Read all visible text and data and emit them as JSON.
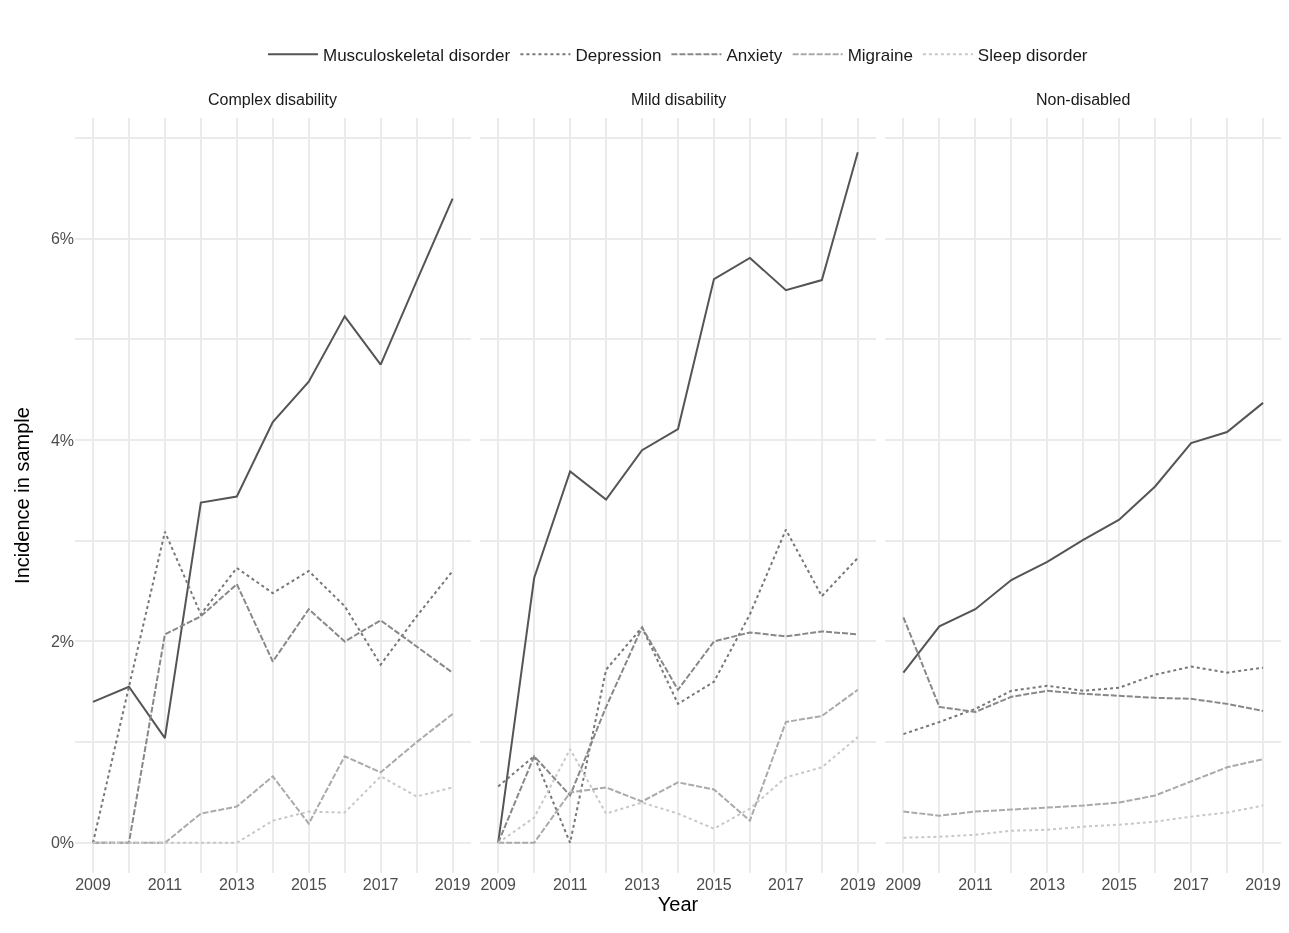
{
  "chart_data": [
    {
      "type": "line",
      "title": "Complex disability",
      "ylabel": "Incidence in sample",
      "legend": "top",
      "grid": true,
      "xlim": [
        2008.5,
        2019.5
      ],
      "ylim": [
        -0.3,
        7.2
      ],
      "xticks": [
        2009,
        {
          "value": 2010,
          "label": null
        },
        2011,
        {
          "value": 2012,
          "label": null
        },
        2013,
        {
          "value": 2014,
          "label": null
        },
        2015,
        {
          "value": 2016,
          "label": null
        },
        2017,
        {
          "value": 2018,
          "label": null
        },
        2019
      ],
      "yticks": [
        {
          "value": 0,
          "label": "0%"
        },
        {
          "value": 1,
          "label": null
        },
        {
          "value": 2,
          "label": "2%"
        },
        {
          "value": 3,
          "label": null
        },
        {
          "value": 4,
          "label": "4%"
        },
        {
          "value": 5,
          "label": null
        },
        {
          "value": 6,
          "label": "6%"
        },
        {
          "value": 7,
          "label": null
        }
      ],
      "x": [
        2009,
        2010,
        2011,
        2012,
        2013,
        2014,
        2015,
        2016,
        2017,
        2018,
        2019
      ],
      "series": [
        {
          "name": "Musculoskeletal disorder",
          "color": "#555555",
          "line_style": "solid",
          "values": [
            1.4,
            1.55,
            1.04,
            3.38,
            3.44,
            4.18,
            4.58,
            5.23,
            4.75,
            5.58,
            6.4
          ]
        },
        {
          "name": "Depression",
          "color": "#777777",
          "line_style": "dotted",
          "values": [
            0,
            1.55,
            3.09,
            2.27,
            2.73,
            2.48,
            2.7,
            2.35,
            1.77,
            2.25,
            2.7
          ]
        },
        {
          "name": "Anxiety",
          "color": "#888888",
          "line_style": "dashed",
          "values": [
            0,
            0,
            2.07,
            2.25,
            2.57,
            1.8,
            2.32,
            2.0,
            2.21,
            1.95,
            1.69
          ]
        },
        {
          "name": "Migraine",
          "color": "#aaaaaa",
          "line_style": "dashed",
          "values": [
            0,
            0,
            0,
            0.29,
            0.36,
            0.66,
            0.19,
            0.86,
            0.7,
            1.0,
            1.28
          ]
        },
        {
          "name": "Sleep disorder",
          "color": "#c8c8c8",
          "line_style": "dotted",
          "values": [
            0,
            0,
            0,
            0,
            0,
            0.22,
            0.31,
            0.3,
            0.66,
            0.46,
            0.55
          ]
        }
      ]
    },
    {
      "type": "line",
      "title": "Mild disability",
      "xlabel": "Year",
      "grid": true,
      "tick_labels": "x",
      "xlim": [
        2008.5,
        2019.5
      ],
      "ylim": [
        -0.3,
        7.2
      ],
      "xticks": [
        2009,
        {
          "value": 2010,
          "label": null
        },
        2011,
        {
          "value": 2012,
          "label": null
        },
        2013,
        {
          "value": 2014,
          "label": null
        },
        2015,
        {
          "value": 2016,
          "label": null
        },
        2017,
        {
          "value": 2018,
          "label": null
        },
        2019
      ],
      "yticks": [
        {
          "value": 0,
          "label": null
        },
        {
          "value": 1,
          "label": null
        },
        {
          "value": 2,
          "label": null
        },
        {
          "value": 3,
          "label": null
        },
        {
          "value": 4,
          "label": null
        },
        {
          "value": 5,
          "label": null
        },
        {
          "value": 6,
          "label": null
        },
        {
          "value": 7,
          "label": null
        }
      ],
      "x": [
        2009,
        2010,
        2011,
        2012,
        2013,
        2014,
        2015,
        2016,
        2017,
        2018,
        2019
      ],
      "series": [
        {
          "color": "#555555",
          "line_style": "solid",
          "values": [
            0,
            2.63,
            3.69,
            3.41,
            3.9,
            4.11,
            5.6,
            5.81,
            5.49,
            5.59,
            6.86
          ]
        },
        {
          "color": "#777777",
          "line_style": "dotted",
          "values": [
            0.56,
            0.86,
            0,
            1.72,
            2.14,
            1.38,
            1.6,
            2.27,
            3.11,
            2.45,
            2.83
          ]
        },
        {
          "color": "#888888",
          "line_style": "dashed",
          "values": [
            0,
            0.86,
            0.47,
            1.35,
            2.14,
            1.52,
            2.0,
            2.09,
            2.05,
            2.1,
            2.07
          ]
        },
        {
          "color": "#aaaaaa",
          "line_style": "dashed",
          "values": [
            0,
            0,
            0.5,
            0.55,
            0.41,
            0.6,
            0.53,
            0.22,
            1.2,
            1.26,
            1.52
          ]
        },
        {
          "color": "#c8c8c8",
          "line_style": "dotted",
          "values": [
            0,
            0.25,
            0.93,
            0.29,
            0.4,
            0.29,
            0.14,
            0.34,
            0.65,
            0.75,
            1.05
          ]
        }
      ]
    },
    {
      "type": "line",
      "title": "Non-disabled",
      "grid": true,
      "tick_labels": "x",
      "xlim": [
        2008.5,
        2019.5
      ],
      "ylim": [
        -0.3,
        7.2
      ],
      "xticks": [
        2009,
        {
          "value": 2010,
          "label": null
        },
        2011,
        {
          "value": 2012,
          "label": null
        },
        2013,
        {
          "value": 2014,
          "label": null
        },
        2015,
        {
          "value": 2016,
          "label": null
        },
        2017,
        {
          "value": 2018,
          "label": null
        },
        2019
      ],
      "yticks": [
        {
          "value": 0,
          "label": null
        },
        {
          "value": 1,
          "label": null
        },
        {
          "value": 2,
          "label": null
        },
        {
          "value": 3,
          "label": null
        },
        {
          "value": 4,
          "label": null
        },
        {
          "value": 5,
          "label": null
        },
        {
          "value": 6,
          "label": null
        },
        {
          "value": 7,
          "label": null
        }
      ],
      "x": [
        2009,
        2010,
        2011,
        2012,
        2013,
        2014,
        2015,
        2016,
        2017,
        2018,
        2019
      ],
      "series": [
        {
          "color": "#555555",
          "line_style": "solid",
          "values": [
            1.69,
            2.15,
            2.32,
            2.61,
            2.79,
            3.01,
            3.21,
            3.54,
            3.97,
            4.08,
            4.37
          ]
        },
        {
          "color": "#777777",
          "line_style": "dotted",
          "values": [
            1.08,
            1.2,
            1.33,
            1.51,
            1.56,
            1.51,
            1.54,
            1.67,
            1.75,
            1.69,
            1.74
          ]
        },
        {
          "color": "#888888",
          "line_style": "dashed",
          "values": [
            2.24,
            1.35,
            1.3,
            1.45,
            1.51,
            1.48,
            1.46,
            1.44,
            1.43,
            1.38,
            1.31
          ]
        },
        {
          "color": "#aaaaaa",
          "line_style": "dashed",
          "values": [
            0.31,
            0.27,
            0.31,
            0.33,
            0.35,
            0.37,
            0.4,
            0.47,
            0.61,
            0.75,
            0.83
          ]
        },
        {
          "color": "#c8c8c8",
          "line_style": "dotted",
          "values": [
            0.05,
            0.06,
            0.08,
            0.12,
            0.13,
            0.16,
            0.18,
            0.21,
            0.26,
            0.3,
            0.37
          ]
        }
      ]
    }
  ]
}
